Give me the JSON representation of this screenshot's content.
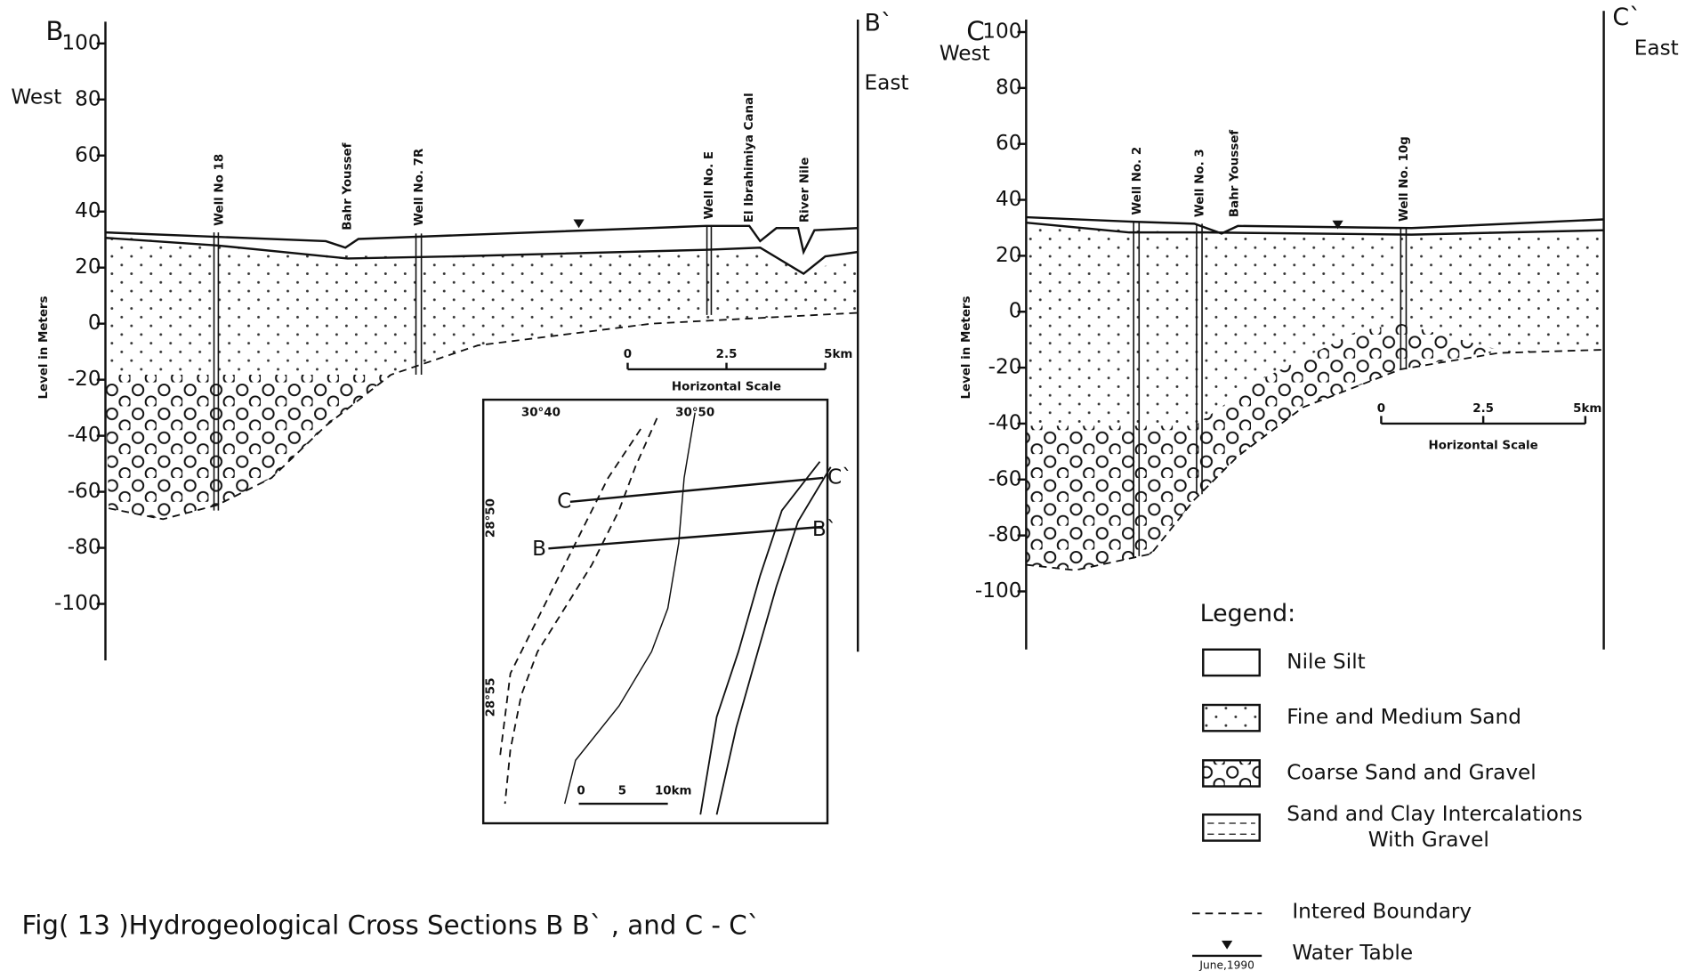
{
  "caption": "Fig( 13 )Hydrogeological  Cross  Sections  B   B` , and    C - C`",
  "section_b": {
    "start": "B",
    "end": "B`",
    "west": "West",
    "east": "East",
    "axis_title": "Level  in  Meters",
    "yticks": [
      100,
      80,
      60,
      40,
      20,
      0,
      -20,
      -40,
      -60,
      -80,
      -100
    ],
    "labels": [
      "Well  No 18",
      "Bahr  Youssef",
      "Well  No. 7R",
      "Well  No. E",
      "El  Ibrahimiya  Canal",
      "River  Nile"
    ],
    "scale": {
      "ticks": [
        "0",
        "2.5",
        "5km"
      ],
      "title": "Horizontal   Scale"
    }
  },
  "section_c": {
    "start": "C",
    "end": "C`",
    "west": "West",
    "east": "East",
    "axis_title": "Level  in  Meters",
    "yticks": [
      100,
      80,
      60,
      40,
      20,
      0,
      -20,
      -40,
      -60,
      -80,
      -100
    ],
    "labels": [
      "Well  No. 2",
      "Well  No. 3",
      "Bahr  Youssef",
      "Well  No. 10g"
    ],
    "scale": {
      "ticks": [
        "0",
        "2.5",
        "5km"
      ],
      "title": "Horizontal   Scale"
    }
  },
  "map": {
    "labels": [
      "C",
      "B",
      "C`",
      "B`"
    ],
    "coords": [
      "30°40",
      "30°50",
      "28°50",
      "28°55"
    ],
    "scale": [
      "0",
      "5",
      "10km"
    ]
  },
  "legend": {
    "title": "Legend:",
    "items": [
      "Nile   Silt",
      "Fine  and  Medium  Sand",
      "Coarse  Sand  and  Gravel",
      "Sand  and  Clay  Intercalations",
      "With  Gravel"
    ],
    "boundary": "Intered  Boundary",
    "water_table": "Water   Table",
    "water_date": "June,1990"
  }
}
